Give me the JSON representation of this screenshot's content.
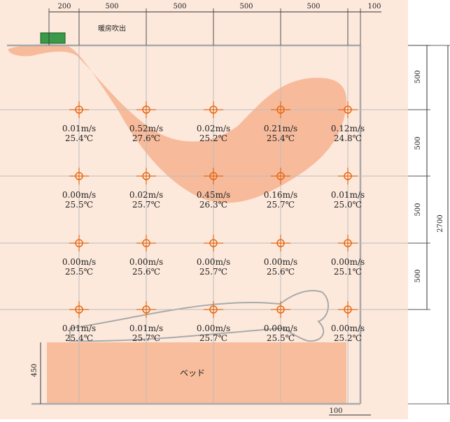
{
  "outlet_label": "暖房吹出",
  "bed_label": "ベッド",
  "dimensions": {
    "top": [
      "200",
      "500",
      "500",
      "500",
      "500",
      "100"
    ],
    "right": [
      "500",
      "500",
      "500",
      "500"
    ],
    "right_total": "2700",
    "bed_height": "450",
    "bottom": "100"
  },
  "points": [
    [
      {
        "speed": "0.01m/s",
        "temp": "25.4℃"
      },
      {
        "speed": "0.52m/s",
        "temp": "27.6℃"
      },
      {
        "speed": "0.02m/s",
        "temp": "25.2℃"
      },
      {
        "speed": "0.21m/s",
        "temp": "25.4℃"
      },
      {
        "speed": "0.12m/s",
        "temp": "24.8℃"
      }
    ],
    [
      {
        "speed": "0.00m/s",
        "temp": "25.5℃"
      },
      {
        "speed": "0.02m/s",
        "temp": "25.7℃"
      },
      {
        "speed": "0.45m/s",
        "temp": "26.3℃"
      },
      {
        "speed": "0.16m/s",
        "temp": "25.7℃"
      },
      {
        "speed": "0.01m/s",
        "temp": "25.0℃"
      }
    ],
    [
      {
        "speed": "0.00m/s",
        "temp": "25.5℃"
      },
      {
        "speed": "0.00m/s",
        "temp": "25.6℃"
      },
      {
        "speed": "0.00m/s",
        "temp": "25.7℃"
      },
      {
        "speed": "0.00m/s",
        "temp": "25.6℃"
      },
      {
        "speed": "0.00m/s",
        "temp": "25.1℃"
      }
    ],
    [
      {
        "speed": "0.01m/s",
        "temp": "25.4℃"
      },
      {
        "speed": "0.01m/s",
        "temp": "25.7℃"
      },
      {
        "speed": "0.00m/s",
        "temp": "25.7℃"
      },
      {
        "speed": "0.00m/s",
        "temp": "25.5℃"
      },
      {
        "speed": "0.00m/s",
        "temp": "25.2℃"
      }
    ]
  ]
}
